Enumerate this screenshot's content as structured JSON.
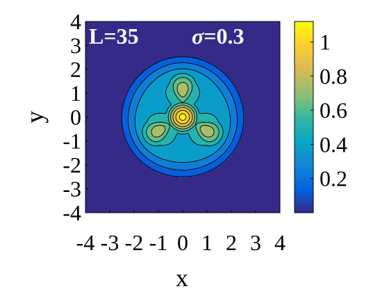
{
  "chart_data": {
    "type": "heatmap",
    "style": "filled-contour",
    "annotations": {
      "left": "L=35",
      "right_symbol": "σ",
      "right_value": "=0.3"
    },
    "xlabel": "x",
    "ylabel": "y",
    "xlim": [
      -4,
      4
    ],
    "ylim": [
      -4,
      4
    ],
    "xticks": [
      "-4",
      "-3",
      "-2",
      "-1",
      "0",
      "1",
      "2",
      "3",
      "4"
    ],
    "yticks": [
      "4",
      "3",
      "2",
      "1",
      "0",
      "-1",
      "-2",
      "-3",
      "-4"
    ],
    "colorbar": {
      "range": [
        0,
        1.12
      ],
      "ticks": [
        "0.2",
        "0.4",
        "0.6",
        "0.8",
        "1"
      ],
      "tick_values": [
        0.2,
        0.4,
        0.6,
        0.8,
        1.0
      ],
      "colormap": "parula"
    },
    "contour_levels": [
      0.08,
      0.2,
      0.33,
      0.46,
      0.58,
      0.7,
      0.82,
      0.95,
      1.06
    ],
    "field": {
      "disk_radius": 2.95,
      "peak_value": 1.1,
      "lobe_count": 3,
      "lobe_angles_deg": [
        90,
        210,
        330
      ],
      "lobe_extent": 2.4,
      "outer_shell_inner_radius": 2.3
    },
    "grid": false
  },
  "colors": {
    "parula": [
      "#352a87",
      "#0363e1",
      "#1485d4",
      "#06a7c6",
      "#38b99e",
      "#92bf73",
      "#d9ba56",
      "#fcce2e",
      "#f9fb0e"
    ],
    "background_value_color": "#352a87",
    "annotation_text": "#ffffff"
  }
}
